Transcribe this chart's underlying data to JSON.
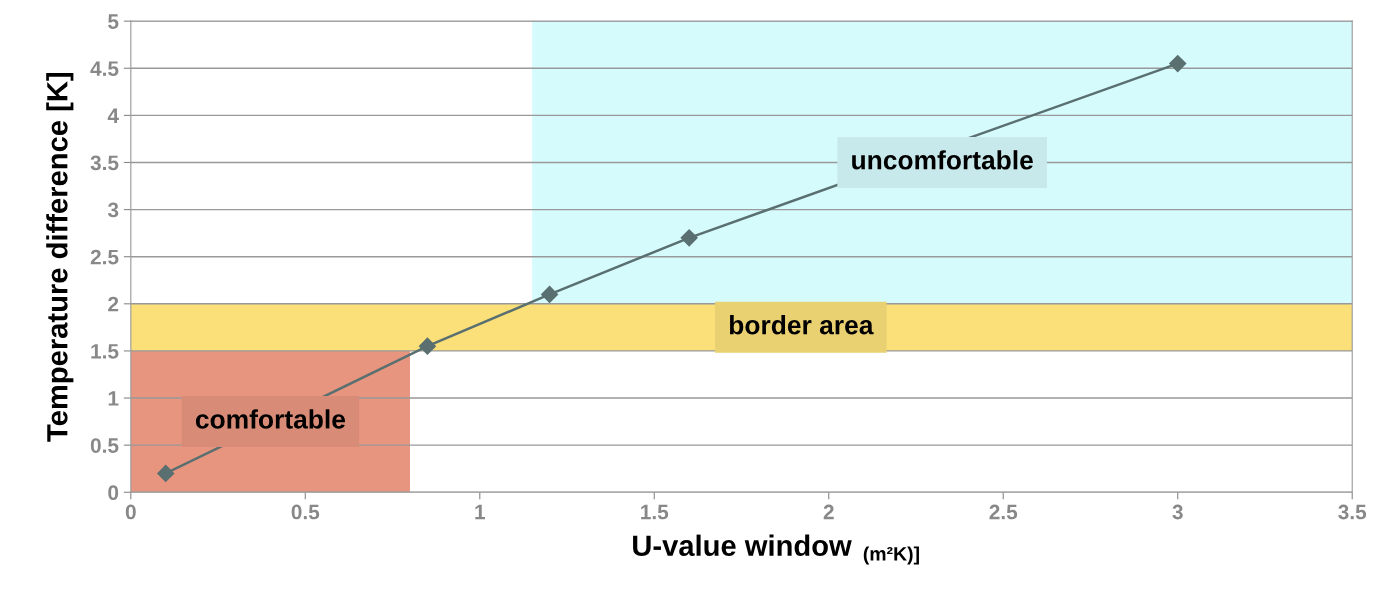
{
  "chart_data": {
    "type": "line",
    "xlabel": "U-value window",
    "ylabel": "Temperature difference [K]",
    "annotations": [
      "(m²K)]"
    ],
    "x": [
      0.1,
      0.85,
      1.2,
      1.6,
      3.0
    ],
    "series": [
      {
        "color": "#5a7070",
        "values": [
          0.2,
          1.55,
          2.1,
          2.7,
          4.55
        ]
      }
    ],
    "marker": "diamond",
    "line_style": "solid",
    "xlim": [
      0,
      3.5
    ],
    "xticks": [
      0,
      0.5,
      1,
      1.5,
      2,
      2.5,
      3,
      3.5
    ],
    "ylim": [
      0,
      5
    ],
    "yticks": [
      0,
      0.5,
      1,
      1.5,
      2,
      2.5,
      3,
      3.5,
      4,
      4.5,
      5
    ],
    "grid": "y",
    "bands": [
      {
        "axis": "x",
        "from": 0,
        "to": 0.8,
        "label": "comfortable",
        "color": "#e8957f"
      },
      {
        "axis": "y",
        "from": 1.5,
        "to": 2,
        "label": "border area",
        "color": "#fbe07a"
      },
      {
        "axis": "x",
        "from": 1.15,
        "to": 3.5,
        "label": "uncomfortable",
        "color": "#d6fbfd"
      }
    ]
  }
}
